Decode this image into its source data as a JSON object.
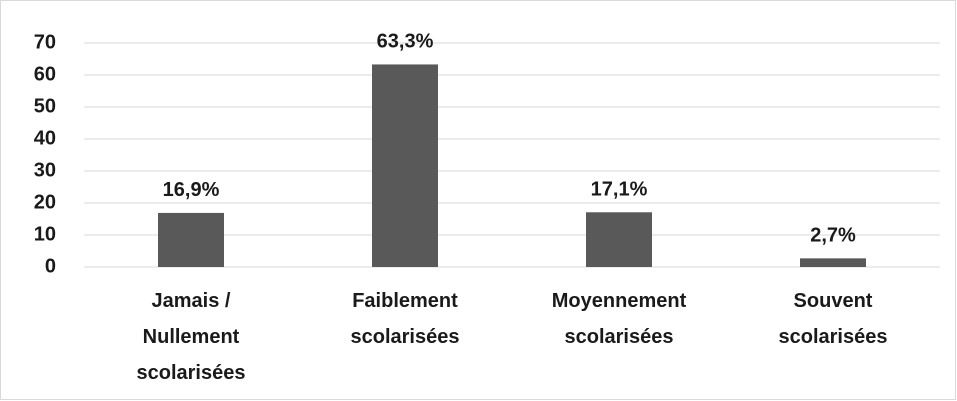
{
  "chart_data": {
    "type": "bar",
    "categories": [
      "Jamais /\nNullement\nscolarisées",
      "Faiblement\nscolarisées",
      "Moyennement\nscolarisées",
      "Souvent\nscolarisées"
    ],
    "values": [
      16.9,
      63.3,
      17.1,
      2.7
    ],
    "value_labels": [
      "16,9%",
      "63,3%",
      "17,1%",
      "2,7%"
    ],
    "color": "#595959",
    "ylim": [
      0,
      70
    ],
    "yticks": [
      0,
      10,
      20,
      30,
      40,
      50,
      60,
      70
    ],
    "grid": true
  }
}
